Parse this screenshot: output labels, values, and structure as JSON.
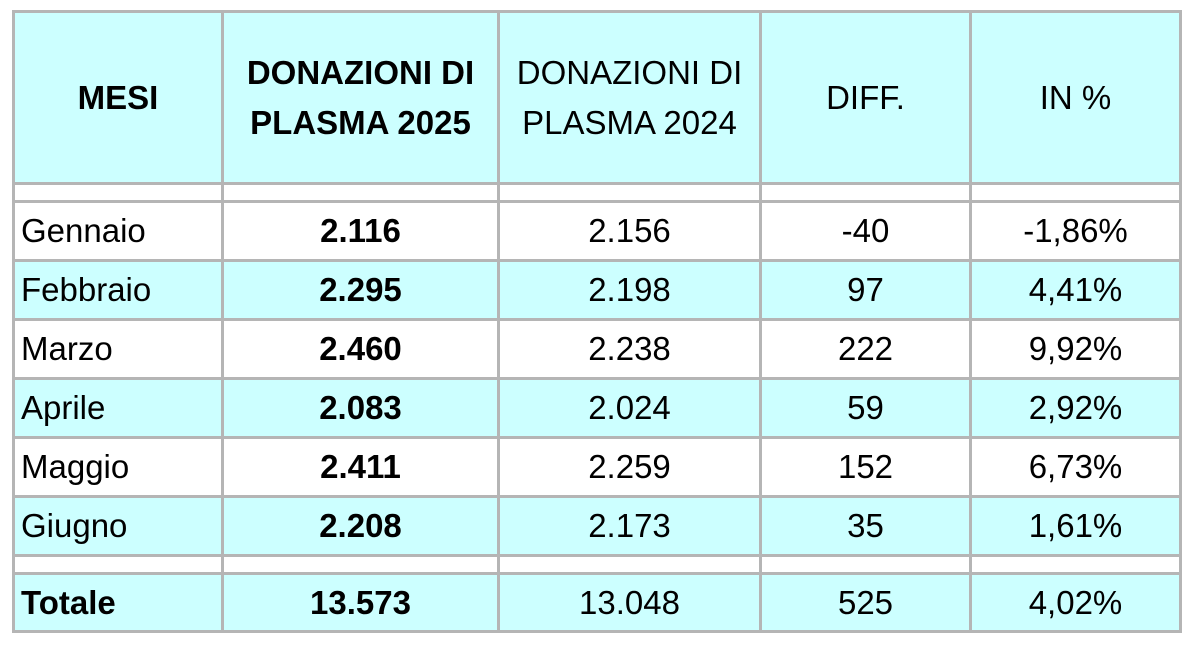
{
  "headers": {
    "mesi": "MESI",
    "don2025_line1": "DONAZIONI DI",
    "don2025_line2": "PLASMA 2025",
    "don2024_line1": "DONAZIONI DI",
    "don2024_line2": "PLASMA 2024",
    "diff": "DIFF.",
    "pct": "IN %"
  },
  "rows": [
    {
      "month": "Gennaio",
      "d2025": "2.116",
      "d2024": "2.156",
      "diff": "-40",
      "pct": "-1,86%"
    },
    {
      "month": "Febbraio",
      "d2025": "2.295",
      "d2024": "2.198",
      "diff": "97",
      "pct": "4,41%"
    },
    {
      "month": "Marzo",
      "d2025": "2.460",
      "d2024": "2.238",
      "diff": "222",
      "pct": "9,92%"
    },
    {
      "month": "Aprile",
      "d2025": "2.083",
      "d2024": "2.024",
      "diff": "59",
      "pct": "2,92%"
    },
    {
      "month": "Maggio",
      "d2025": "2.411",
      "d2024": "2.259",
      "diff": "152",
      "pct": "6,73%"
    },
    {
      "month": "Giugno",
      "d2025": "2.208",
      "d2024": "2.173",
      "diff": "35",
      "pct": "1,61%"
    }
  ],
  "total": {
    "label": "Totale",
    "d2025": "13.573",
    "d2024": "13.048",
    "diff": "525",
    "pct": "4,02%"
  },
  "colors": {
    "header_bg": "#ccffff",
    "stripe_bg": "#ccffff",
    "border": "#b5b5b5"
  }
}
